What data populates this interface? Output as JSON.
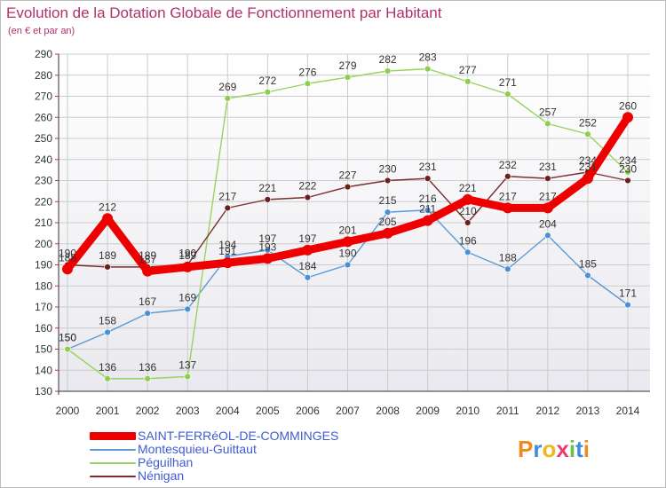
{
  "title": "Evolution de la Dotation Globale de Fonctionnement par Habitant",
  "subtitle": "(en € et par an)",
  "logo_text": "Proxiti",
  "colors": {
    "title": "#b0306a",
    "legend_text": "#3f5bd1",
    "plot_bg_top": "#ffffff",
    "plot_bg_bottom": "#e9e9ef",
    "grid": "#cccccc"
  },
  "chart_data": {
    "type": "line",
    "title": "Evolution de la Dotation Globale de Fonctionnement par Habitant",
    "subtitle": "(en € et par an)",
    "x": [
      2000,
      2001,
      2002,
      2003,
      2004,
      2005,
      2006,
      2007,
      2008,
      2009,
      2010,
      2011,
      2012,
      2013,
      2014
    ],
    "ylim": [
      130,
      290
    ],
    "yticks": [
      130,
      140,
      150,
      160,
      170,
      180,
      190,
      200,
      210,
      220,
      230,
      240,
      250,
      260,
      270,
      280,
      290
    ],
    "grid": true,
    "legend_position": "bottom-left",
    "series": [
      {
        "name": "Montesquieu-Guittaut",
        "color": "#5b9bd5",
        "marker": "#4a90d9",
        "values": [
          150,
          158,
          167,
          169,
          194,
          197,
          184,
          190,
          215,
          216,
          196,
          188,
          204,
          185,
          171
        ],
        "labels": [
          "150",
          "158",
          "167",
          "169",
          "194",
          "197",
          "184",
          "190",
          "215",
          "216",
          "196",
          "188",
          "204",
          "185",
          "171"
        ]
      },
      {
        "name": "Péguilhan",
        "color": "#99d35f",
        "marker": "#8ccf4d",
        "values": [
          150,
          136,
          136,
          137,
          269,
          272,
          276,
          279,
          282,
          283,
          277,
          271,
          257,
          252,
          234
        ],
        "labels": [
          "150",
          "136",
          "136",
          "137",
          "269",
          "272",
          "276",
          "279",
          "282",
          "283",
          "277",
          "271",
          "257",
          "252",
          "234"
        ]
      },
      {
        "name": "Nénigan",
        "color": "#7a2e2e",
        "marker": "#6b1f1f",
        "values": [
          190,
          189,
          189,
          190,
          217,
          221,
          222,
          227,
          230,
          231,
          210,
          232,
          231,
          234,
          230
        ],
        "labels": [
          "190",
          "189",
          "189",
          "190",
          "217",
          "221",
          "222",
          "227",
          "230",
          "231",
          "210",
          "232",
          "231",
          "234",
          "230"
        ]
      },
      {
        "name": "SAINT-FERRéOL-DE-COMMINGES",
        "color": "#ee0000",
        "marker": "#ee0000",
        "bold": true,
        "values": [
          188,
          212,
          187,
          189,
          191,
          193,
          197,
          201,
          205,
          211,
          221,
          217,
          217,
          231,
          260
        ],
        "labels": [
          "188",
          "212",
          "187",
          "189",
          "191",
          "193",
          "197",
          "201",
          "205",
          "211",
          "221",
          "217",
          "217",
          "231",
          "260"
        ]
      }
    ]
  },
  "legend": [
    {
      "label": "SAINT-FERRéOL-DE-COMMINGES",
      "color": "#ee0000",
      "bold": true
    },
    {
      "label": "Montesquieu-Guittaut",
      "color": "#5b9bd5",
      "bold": false
    },
    {
      "label": "Péguilhan",
      "color": "#99d35f",
      "bold": false
    },
    {
      "label": "Nénigan",
      "color": "#7a2e2e",
      "bold": false
    }
  ]
}
